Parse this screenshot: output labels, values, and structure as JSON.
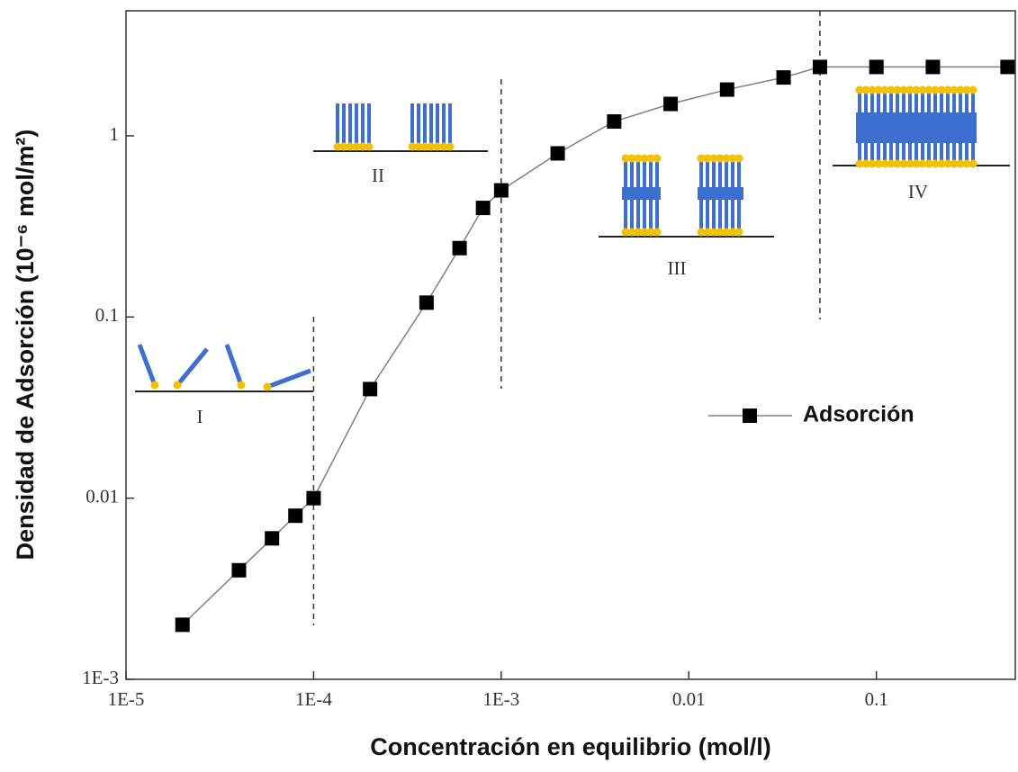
{
  "chart_data": {
    "type": "line",
    "x_label": "Concentración en equilibrio (mol/l)",
    "y_label": "Densidad de Adsorción (10⁻⁶ mol/m²)",
    "x": [
      2e-05,
      4e-05,
      6e-05,
      8e-05,
      0.0001,
      0.0002,
      0.0004,
      0.0006,
      0.0008,
      0.001,
      0.002,
      0.004,
      0.008,
      0.016,
      0.032,
      0.05,
      0.1,
      0.2,
      0.5
    ],
    "series": [
      {
        "name": "Adsorción",
        "color": "#000000",
        "line_color": "#808080",
        "values": [
          0.002,
          0.004,
          0.006,
          0.008,
          0.01,
          0.04,
          0.12,
          0.24,
          0.4,
          0.5,
          0.8,
          1.2,
          1.5,
          1.8,
          2.1,
          2.4,
          2.4,
          2.4,
          2.4
        ]
      }
    ],
    "xscale": "log",
    "yscale": "log",
    "xlim": [
      1e-05,
      0.55
    ],
    "ylim": [
      0.001,
      4.9
    ],
    "xticks": [
      {
        "value": 1e-05,
        "label": "1E-5"
      },
      {
        "value": 0.0001,
        "label": "1E-4"
      },
      {
        "value": 0.001,
        "label": "1E-3"
      },
      0.01,
      0.1
    ],
    "yticks": [
      {
        "value": 0.001,
        "label": "1E-3"
      },
      0.01,
      0.1,
      1
    ],
    "boundaries": [
      0.0001,
      0.001,
      0.05
    ],
    "region_labels": [
      "I",
      "II",
      "III",
      "IV"
    ],
    "legend": "right"
  }
}
